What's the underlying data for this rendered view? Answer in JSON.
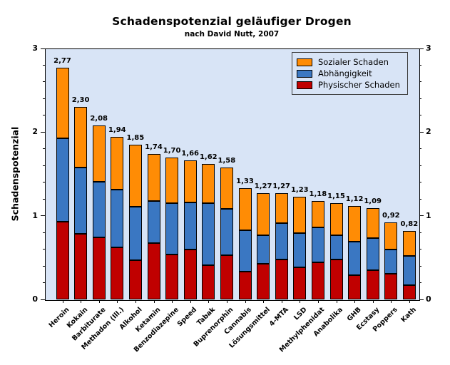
{
  "chart_data": {
    "type": "bar",
    "stacked": true,
    "title": "Schadenspotenzial geläufiger Drogen",
    "subtitle": "nach David Nutt, 2007",
    "xlabel": "",
    "ylabel": "Schadenspotenzial",
    "ylim": [
      0,
      3
    ],
    "yticks": [
      0,
      1,
      2,
      3
    ],
    "y_minor_step": 0.2,
    "grid": false,
    "dual_y_axis": true,
    "plot_bg_color": "#d8e4f6",
    "axis_color": "#000000",
    "legend_position": "top-right",
    "legend_entries": [
      {
        "label": "Sozialer Schaden",
        "color": "#ff8c05"
      },
      {
        "label": "Abhängigkeit",
        "color": "#3a77c2"
      },
      {
        "label": "Physischer Schaden",
        "color": "#c00000"
      }
    ],
    "categories": [
      "Heroin",
      "Kokain",
      "Barbiturate",
      "Methadon (Ill.)",
      "Alkohol",
      "Ketamin",
      "Benzodiazepine",
      "Speed",
      "Tabak",
      "Buprenorphin",
      "Cannabis",
      "Lösungsmittel",
      "4-MTA",
      "LSD",
      "Methylphenidat",
      "Anabolika",
      "GHB",
      "Ecstasy",
      "Poppers",
      "Kath"
    ],
    "series": [
      {
        "name": "Physischer Schaden",
        "color": "#c00000",
        "values": [
          0.93,
          0.78,
          0.74,
          0.62,
          0.47,
          0.67,
          0.54,
          0.6,
          0.41,
          0.53,
          0.33,
          0.43,
          0.48,
          0.38,
          0.44,
          0.48,
          0.29,
          0.35,
          0.31,
          0.17
        ]
      },
      {
        "name": "Abhängigkeit",
        "color": "#3a77c2",
        "values": [
          1.0,
          0.8,
          0.67,
          0.69,
          0.64,
          0.51,
          0.61,
          0.56,
          0.74,
          0.55,
          0.5,
          0.34,
          0.43,
          0.41,
          0.42,
          0.29,
          0.4,
          0.38,
          0.29,
          0.35
        ]
      },
      {
        "name": "Sozialer Schaden",
        "color": "#ff8c05",
        "values": [
          0.84,
          0.72,
          0.67,
          0.63,
          0.74,
          0.56,
          0.55,
          0.5,
          0.47,
          0.5,
          0.5,
          0.5,
          0.36,
          0.44,
          0.32,
          0.38,
          0.43,
          0.36,
          0.32,
          0.3
        ]
      }
    ],
    "totals": [
      2.77,
      2.3,
      2.08,
      1.94,
      1.85,
      1.74,
      1.7,
      1.66,
      1.62,
      1.58,
      1.33,
      1.27,
      1.27,
      1.23,
      1.18,
      1.15,
      1.12,
      1.09,
      0.92,
      0.82
    ],
    "total_labels": [
      "2,77",
      "2,30",
      "2,08",
      "1,94",
      "1,85",
      "1,74",
      "1,70",
      "1,66",
      "1,62",
      "1,58",
      "1,33",
      "1,27",
      "1,27",
      "1,23",
      "1,18",
      "1,15",
      "1,12",
      "1,09",
      "0,92",
      "0,82"
    ]
  }
}
